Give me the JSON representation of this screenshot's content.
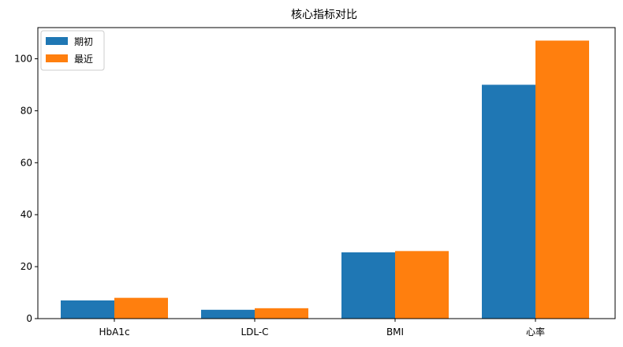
{
  "chart_data": {
    "type": "bar",
    "title": "核心指标对比",
    "xlabel": "",
    "ylabel": "",
    "categories": [
      "HbA1c",
      "LDL-C",
      "BMI",
      "心率"
    ],
    "series": [
      {
        "name": "期初",
        "color": "#1f77b4",
        "values": [
          7.0,
          3.4,
          25.5,
          90
        ]
      },
      {
        "name": "最近",
        "color": "#ff7f0e",
        "values": [
          8.0,
          4.0,
          26.0,
          107
        ]
      }
    ],
    "ylim": [
      0,
      112
    ],
    "yticks": [
      0,
      20,
      40,
      60,
      80,
      100
    ],
    "grid": false,
    "legend": {
      "position": "top-left"
    }
  }
}
